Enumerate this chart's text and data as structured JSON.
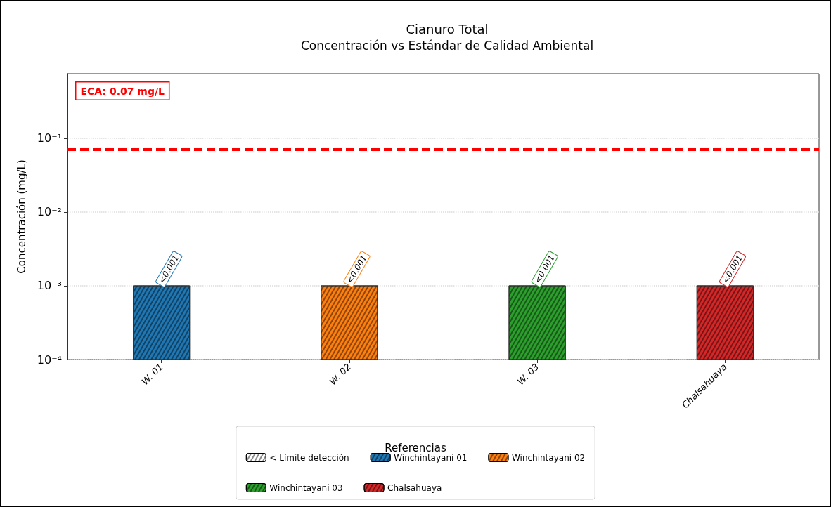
{
  "chart_data": {
    "type": "bar",
    "title": "Cianuro Total",
    "subtitle": "Concentración vs Estándar de Calidad Ambiental",
    "ylabel": "Concentración (mg/L)",
    "legend_title": "Referencias",
    "categories": [
      "W. 01",
      "W. 02",
      "W. 03",
      "Chalsahuaya"
    ],
    "series": [
      {
        "name": "< Límite detección",
        "color": "#ffffff",
        "values": [
          null,
          null,
          null,
          null
        ]
      },
      {
        "name": "Winchintayani 01",
        "color": "#1f77b4",
        "values": [
          0.001,
          null,
          null,
          null
        ],
        "value_labels": [
          "<0.001",
          null,
          null,
          null
        ]
      },
      {
        "name": "Winchintayani 02",
        "color": "#ff7f0e",
        "values": [
          null,
          0.001,
          null,
          null
        ],
        "value_labels": [
          null,
          "<0.001",
          null,
          null
        ]
      },
      {
        "name": "Winchintayani 03",
        "color": "#2ca02c",
        "values": [
          null,
          null,
          0.001,
          null
        ],
        "value_labels": [
          null,
          null,
          "<0.001",
          null
        ]
      },
      {
        "name": "Chalsahuaya",
        "color": "#d62728",
        "values": [
          null,
          null,
          null,
          0.001
        ],
        "value_labels": [
          null,
          null,
          null,
          "<0.001"
        ]
      }
    ],
    "log": "y",
    "ylim": [
      0.0001,
      0.75
    ],
    "yticks": [
      {
        "value": 0.0001,
        "label": "10⁻⁴"
      },
      {
        "value": 0.001,
        "label": "10⁻³"
      },
      {
        "value": 0.01,
        "label": "10⁻²"
      },
      {
        "value": 0.1,
        "label": "10⁻¹"
      }
    ],
    "ref_lines": [
      {
        "axis": "y",
        "value": 0.07,
        "label": "ECA: 0.07 mg/L",
        "color": "#ff0000",
        "line_style": "dashed"
      }
    ],
    "grid": "y",
    "legend": "bottom"
  }
}
